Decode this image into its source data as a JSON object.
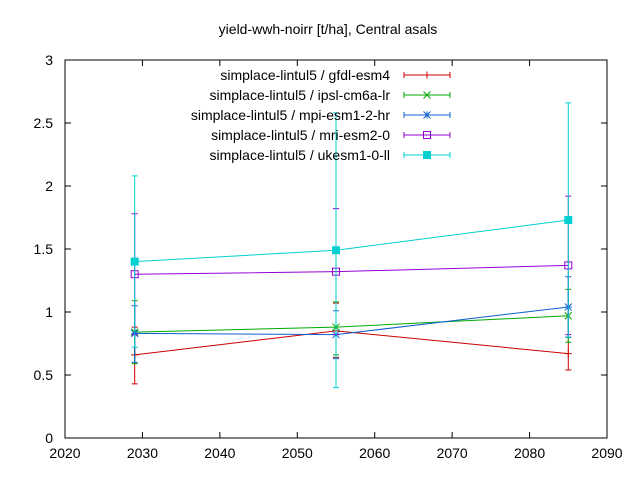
{
  "chart_data": {
    "type": "line",
    "title": "yield-wwh-noirr [t/ha], Central asals",
    "xlabel": "",
    "ylabel": "",
    "xlim": [
      2020,
      2090
    ],
    "ylim": [
      0,
      3
    ],
    "xticks": [
      2020,
      2030,
      2040,
      2050,
      2060,
      2070,
      2080,
      2090
    ],
    "yticks": [
      0,
      0.5,
      1,
      1.5,
      2,
      2.5,
      3
    ],
    "ytick_labels": [
      "0",
      "0.5",
      "1",
      "1.5",
      "2",
      "2.5",
      "3"
    ],
    "grid": false,
    "legend_position": "top-right",
    "x": [
      2029,
      2055,
      2085
    ],
    "series": [
      {
        "name": "simplace-lintul5 / gfdl-esm4",
        "color": "#cc0000",
        "marker": "plus",
        "values": [
          0.66,
          0.85,
          0.67
        ],
        "error_low": [
          0.43,
          0.64,
          0.54
        ],
        "error_high": [
          0.88,
          1.07,
          0.8
        ]
      },
      {
        "name": "simplace-lintul5 / ipsl-cm6a-lr",
        "color": "#00aa00",
        "marker": "cross",
        "values": [
          0.84,
          0.88,
          0.97
        ],
        "error_low": [
          0.59,
          0.66,
          0.76
        ],
        "error_high": [
          1.09,
          1.08,
          1.18
        ]
      },
      {
        "name": "simplace-lintul5 / mpi-esm1-2-hr",
        "color": "#1060d0",
        "marker": "star",
        "values": [
          0.83,
          0.82,
          1.04
        ],
        "error_low": [
          0.6,
          0.63,
          0.8
        ],
        "error_high": [
          1.05,
          1.01,
          1.28
        ]
      },
      {
        "name": "simplace-lintul5 / mri-esm2-0",
        "color": "#9400d3",
        "marker": "square-open",
        "values": [
          1.3,
          1.32,
          1.37
        ],
        "error_low": [
          0.82,
          0.82,
          0.82
        ],
        "error_high": [
          1.78,
          1.82,
          1.92
        ]
      },
      {
        "name": "simplace-lintul5 / ukesm1-0-ll",
        "color": "#00d0d0",
        "marker": "square-filled",
        "values": [
          1.4,
          1.49,
          1.73
        ],
        "error_low": [
          0.72,
          0.4,
          0.8
        ],
        "error_high": [
          2.08,
          2.58,
          2.66
        ]
      }
    ]
  }
}
